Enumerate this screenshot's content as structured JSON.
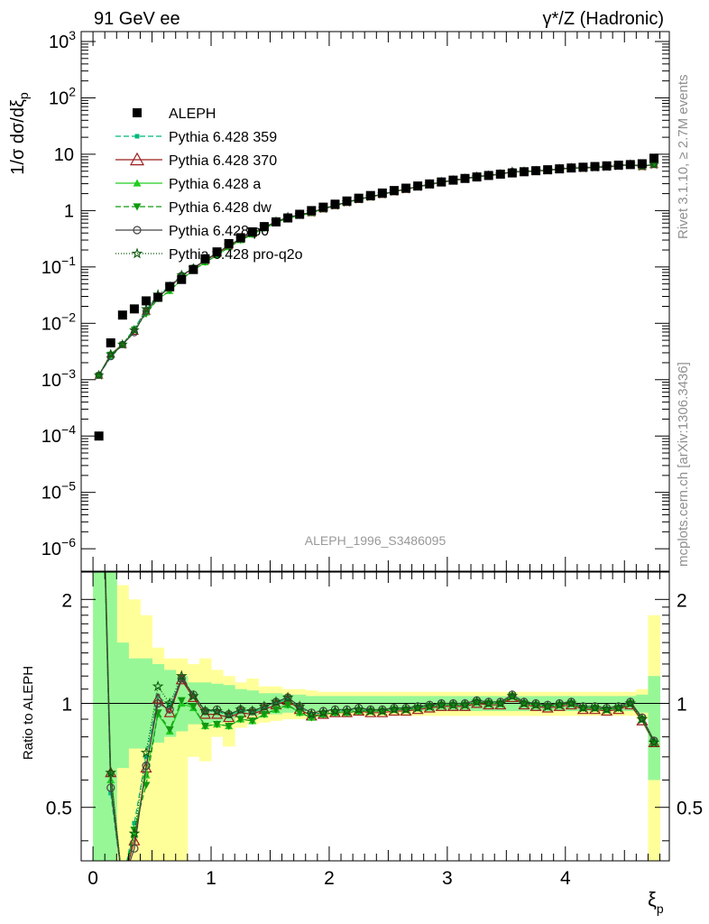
{
  "header": {
    "left": "91 GeV ee",
    "right_sym": "γ*/Z",
    "right_txt": "(Hadronic)"
  },
  "side": {
    "rivet": "Rivet 3.1.10, ≥ 2.7M events",
    "mcplots": "mcplots.cern.ch [arXiv:1306.3436]"
  },
  "analysis_id": "ALEPH_1996_S3486095",
  "axes": {
    "upper_ylabel_prefix": "1/σ dσ/dξ",
    "upper_ylabel_sub": "p",
    "lower_ylabel": "Ratio to ALEPH",
    "xlabel_main": "ξ",
    "xlabel_sub": "p"
  },
  "colors": {
    "ALEPH": "#000000",
    "p359": "#00b878",
    "p370": "#9c1c1c",
    "pa": "#22cc22",
    "pdw": "#119911",
    "pp0": "#444444",
    "pq2o": "#0a5a0a",
    "band_inner": "#97f797",
    "band_outer": "#ffff9a"
  },
  "chart_data": {
    "type": "scatter",
    "x": [
      0.05,
      0.15,
      0.25,
      0.35,
      0.45,
      0.55,
      0.65,
      0.75,
      0.85,
      0.95,
      1.05,
      1.15,
      1.25,
      1.35,
      1.45,
      1.55,
      1.65,
      1.75,
      1.85,
      1.95,
      2.05,
      2.15,
      2.25,
      2.35,
      2.45,
      2.55,
      2.65,
      2.75,
      2.85,
      2.95,
      3.05,
      3.15,
      3.25,
      3.35,
      3.45,
      3.55,
      3.65,
      3.75,
      3.85,
      3.95,
      4.05,
      4.15,
      4.25,
      4.35,
      4.45,
      4.55,
      4.65,
      4.75
    ],
    "xlim": [
      -0.1,
      4.88
    ],
    "upper_ylim": [
      4e-07,
      1500.0
    ],
    "upper_scale": "log",
    "upper_ticks": [
      "10^-6",
      "10^-5",
      "10^-4",
      "10^-3",
      "10^-2",
      "10^-1",
      "1",
      "10",
      "10^2",
      "10^3"
    ],
    "lower_ylim": [
      0.35,
      2.4
    ],
    "lower_scale": "log",
    "lower_ticks": [
      0.5,
      1,
      2
    ],
    "x_ticks": [
      0,
      1,
      2,
      3,
      4
    ],
    "aleph": [
      0.0001,
      0.0045,
      0.014,
      0.018,
      0.025,
      0.029,
      0.045,
      0.06,
      0.09,
      0.14,
      0.185,
      0.26,
      0.33,
      0.42,
      0.52,
      0.63,
      0.74,
      0.86,
      1.0,
      1.15,
      1.3,
      1.48,
      1.66,
      1.85,
      2.05,
      2.27,
      2.5,
      2.73,
      2.97,
      3.22,
      3.47,
      3.72,
      3.95,
      4.2,
      4.43,
      4.66,
      4.89,
      5.1,
      5.3,
      5.5,
      5.7,
      5.88,
      6.05,
      6.22,
      6.4,
      6.55,
      6.78,
      8.5
    ],
    "band_inner": [
      2.5,
      2.5,
      1.5,
      1.35,
      1.35,
      1.3,
      1.25,
      1.2,
      1.15,
      1.15,
      1.14,
      1.13,
      1.1,
      1.09,
      1.07,
      1.07,
      1.06,
      1.06,
      1.05,
      1.05,
      1.05,
      1.05,
      1.05,
      1.05,
      1.05,
      1.05,
      1.05,
      1.05,
      1.05,
      1.05,
      1.05,
      1.05,
      1.05,
      1.05,
      1.05,
      1.05,
      1.05,
      1.05,
      1.05,
      1.05,
      1.05,
      1.05,
      1.05,
      1.05,
      1.05,
      1.05,
      1.06,
      1.2
    ],
    "band_inner_lo": [
      0.3,
      0.3,
      0.65,
      0.74,
      0.74,
      0.77,
      0.8,
      0.83,
      0.87,
      0.87,
      0.88,
      0.89,
      0.91,
      0.92,
      0.93,
      0.93,
      0.94,
      0.94,
      0.95,
      0.95,
      0.95,
      0.95,
      0.95,
      0.95,
      0.95,
      0.95,
      0.95,
      0.95,
      0.95,
      0.95,
      0.95,
      0.95,
      0.95,
      0.95,
      0.95,
      0.95,
      0.95,
      0.95,
      0.95,
      0.95,
      0.95,
      0.95,
      0.95,
      0.95,
      0.95,
      0.95,
      0.94,
      0.6
    ],
    "band_outer": [
      2.5,
      2.5,
      2.2,
      2.0,
      1.8,
      1.45,
      1.35,
      1.35,
      1.3,
      1.35,
      1.25,
      1.2,
      1.15,
      1.18,
      1.12,
      1.12,
      1.1,
      1.1,
      1.09,
      1.08,
      1.08,
      1.08,
      1.08,
      1.08,
      1.08,
      1.08,
      1.08,
      1.08,
      1.08,
      1.08,
      1.08,
      1.08,
      1.08,
      1.08,
      1.08,
      1.08,
      1.08,
      1.08,
      1.08,
      1.08,
      1.08,
      1.08,
      1.08,
      1.08,
      1.08,
      1.08,
      1.1,
      1.8
    ],
    "band_outer_lo": [
      0.3,
      0.3,
      0.3,
      0.3,
      0.3,
      0.3,
      0.3,
      0.3,
      0.7,
      0.68,
      0.8,
      0.75,
      0.85,
      0.87,
      0.88,
      0.89,
      0.9,
      0.9,
      0.91,
      0.91,
      0.92,
      0.92,
      0.92,
      0.92,
      0.92,
      0.92,
      0.92,
      0.92,
      0.92,
      0.92,
      0.92,
      0.92,
      0.92,
      0.92,
      0.92,
      0.92,
      0.92,
      0.92,
      0.92,
      0.92,
      0.92,
      0.92,
      0.92,
      0.92,
      0.92,
      0.92,
      0.9,
      0.3
    ],
    "series": [
      {
        "name": "Pythia 6.428 359",
        "key": "p359",
        "marker": "sq",
        "dash": "6,3",
        "ratio": [
          12.0,
          0.55,
          0.3,
          0.45,
          0.7,
          1.05,
          0.98,
          1.18,
          1.05,
          0.95,
          0.95,
          0.92,
          0.95,
          0.94,
          0.97,
          1.0,
          1.03,
          0.97,
          0.93,
          0.94,
          0.95,
          0.95,
          0.96,
          0.95,
          0.95,
          0.96,
          0.96,
          0.97,
          0.98,
          0.99,
          0.99,
          0.99,
          1.01,
          1.0,
          1.0,
          1.05,
          1.0,
          0.99,
          0.98,
          0.99,
          1.0,
          0.97,
          0.97,
          0.96,
          0.97,
          1.0,
          0.9,
          0.78
        ]
      },
      {
        "name": "Pythia 6.428 370",
        "key": "p370",
        "marker": "tri",
        "dash": "",
        "ratio": [
          13.0,
          0.63,
          0.3,
          0.4,
          0.65,
          1.03,
          0.94,
          1.17,
          1.04,
          0.93,
          0.93,
          0.91,
          0.94,
          0.93,
          0.96,
          0.99,
          1.02,
          0.96,
          0.92,
          0.93,
          0.94,
          0.94,
          0.95,
          0.94,
          0.94,
          0.95,
          0.95,
          0.96,
          0.97,
          0.98,
          0.98,
          0.98,
          1.0,
          0.99,
          0.99,
          1.04,
          0.99,
          0.98,
          0.97,
          0.98,
          0.99,
          0.96,
          0.96,
          0.95,
          0.96,
          0.99,
          0.89,
          0.77
        ]
      },
      {
        "name": "Pythia 6.428 a",
        "key": "pa",
        "marker": "tri",
        "dash": "",
        "ratio": [
          11.0,
          0.6,
          0.3,
          0.42,
          0.62,
          0.93,
          0.83,
          1.0,
          0.97,
          0.86,
          0.87,
          0.86,
          0.9,
          0.89,
          0.93,
          0.96,
          0.99,
          0.94,
          0.91,
          0.93,
          0.94,
          0.94,
          0.95,
          0.95,
          0.95,
          0.96,
          0.96,
          0.97,
          0.98,
          0.99,
          0.99,
          0.99,
          1.01,
          1.0,
          1.0,
          1.05,
          1.0,
          0.99,
          0.98,
          0.99,
          1.0,
          0.97,
          0.97,
          0.96,
          0.97,
          1.0,
          0.9,
          0.77
        ]
      },
      {
        "name": "Pythia 6.428 dw",
        "key": "pdw",
        "marker": "tridown",
        "dash": "6,3",
        "ratio": [
          11.5,
          0.62,
          0.3,
          0.43,
          0.58,
          0.94,
          0.84,
          1.02,
          0.98,
          0.86,
          0.87,
          0.86,
          0.9,
          0.89,
          0.93,
          0.96,
          0.99,
          0.94,
          0.91,
          0.93,
          0.94,
          0.94,
          0.95,
          0.95,
          0.95,
          0.96,
          0.96,
          0.97,
          0.98,
          0.99,
          0.99,
          0.99,
          1.01,
          1.0,
          1.0,
          1.05,
          1.0,
          0.99,
          0.98,
          0.99,
          1.0,
          0.97,
          0.97,
          0.96,
          0.97,
          1.0,
          0.9,
          0.77
        ]
      },
      {
        "name": "Pythia 6.428 p0",
        "key": "pp0",
        "marker": "circ",
        "dash": "",
        "ratio": [
          12.5,
          0.57,
          0.3,
          0.38,
          0.66,
          1.0,
          0.96,
          1.18,
          1.06,
          0.95,
          0.96,
          0.93,
          0.96,
          0.95,
          0.98,
          1.01,
          1.04,
          0.98,
          0.94,
          0.95,
          0.96,
          0.96,
          0.97,
          0.96,
          0.96,
          0.97,
          0.97,
          0.98,
          0.99,
          1.0,
          1.0,
          1.0,
          1.02,
          1.01,
          1.01,
          1.06,
          1.01,
          1.0,
          0.99,
          1.0,
          1.01,
          0.98,
          0.98,
          0.97,
          0.98,
          1.01,
          0.91,
          0.78
        ]
      },
      {
        "name": "Pythia 6.428 pro-q2o",
        "key": "pq2o",
        "marker": "star",
        "dash": "1,2",
        "ratio": [
          12.2,
          0.63,
          0.3,
          0.42,
          0.72,
          1.12,
          1.0,
          1.2,
          1.05,
          0.95,
          0.95,
          0.93,
          0.96,
          0.95,
          0.98,
          1.01,
          1.04,
          0.98,
          0.93,
          0.94,
          0.95,
          0.95,
          0.96,
          0.95,
          0.95,
          0.96,
          0.96,
          0.97,
          0.98,
          0.99,
          0.99,
          0.99,
          1.01,
          1.0,
          1.0,
          1.05,
          1.0,
          0.99,
          0.98,
          0.99,
          1.0,
          0.97,
          0.97,
          0.96,
          0.97,
          1.0,
          0.9,
          0.77
        ]
      }
    ],
    "legend": [
      "ALEPH",
      "Pythia 6.428 359",
      "Pythia 6.428 370",
      "Pythia 6.428 a",
      "Pythia 6.428 dw",
      "Pythia 6.428 p0",
      "Pythia 6.428 pro-q2o"
    ],
    "legend_placement": "top-left"
  }
}
